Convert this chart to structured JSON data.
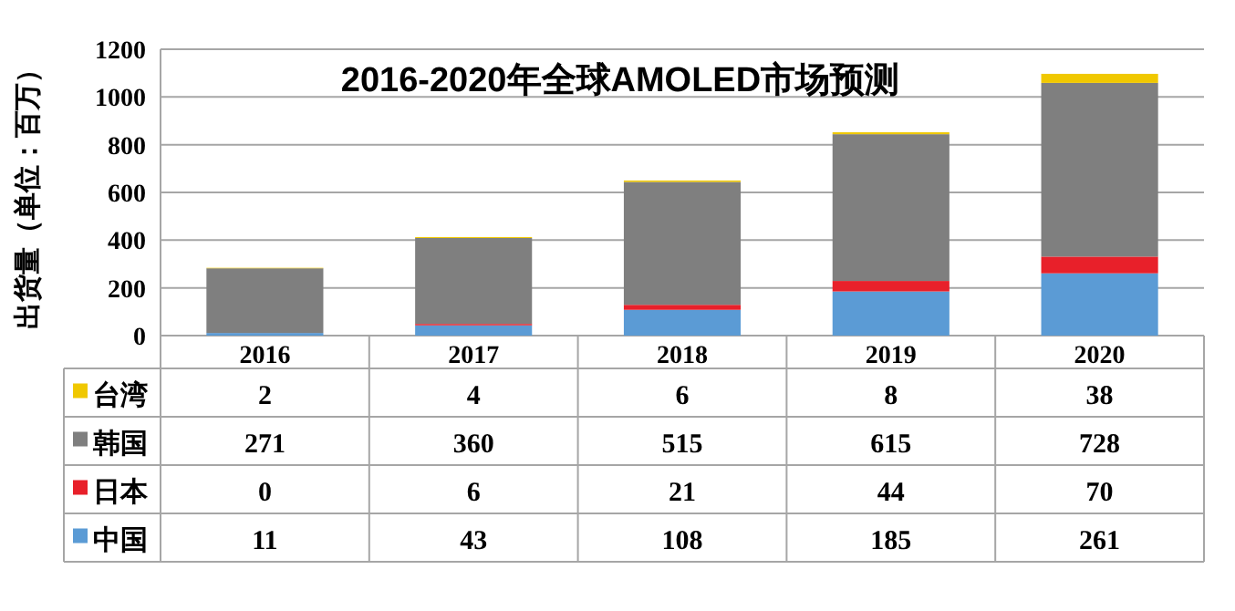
{
  "chart_data": {
    "type": "bar",
    "stacked": true,
    "title": "2016-2020年全球AMOLED市场预测",
    "ylabel": "出货量（单位：百万）",
    "categories": [
      "2016",
      "2017",
      "2018",
      "2019",
      "2020"
    ],
    "series": [
      {
        "name": "中国",
        "color": "#5b9bd5",
        "values": [
          11,
          43,
          108,
          185,
          261
        ]
      },
      {
        "name": "日本",
        "color": "#e8202a",
        "values": [
          0,
          6,
          21,
          44,
          70
        ]
      },
      {
        "name": "韩国",
        "color": "#7f7f7f",
        "values": [
          271,
          360,
          515,
          615,
          728
        ]
      },
      {
        "name": "台湾",
        "color": "#f0c800",
        "values": [
          2,
          4,
          6,
          8,
          38
        ]
      }
    ],
    "ylim": [
      0,
      1200
    ],
    "yticks": [
      0,
      200,
      400,
      600,
      800,
      1000,
      1200
    ],
    "grid": "y",
    "data_labels": true,
    "legend": "bottom"
  }
}
